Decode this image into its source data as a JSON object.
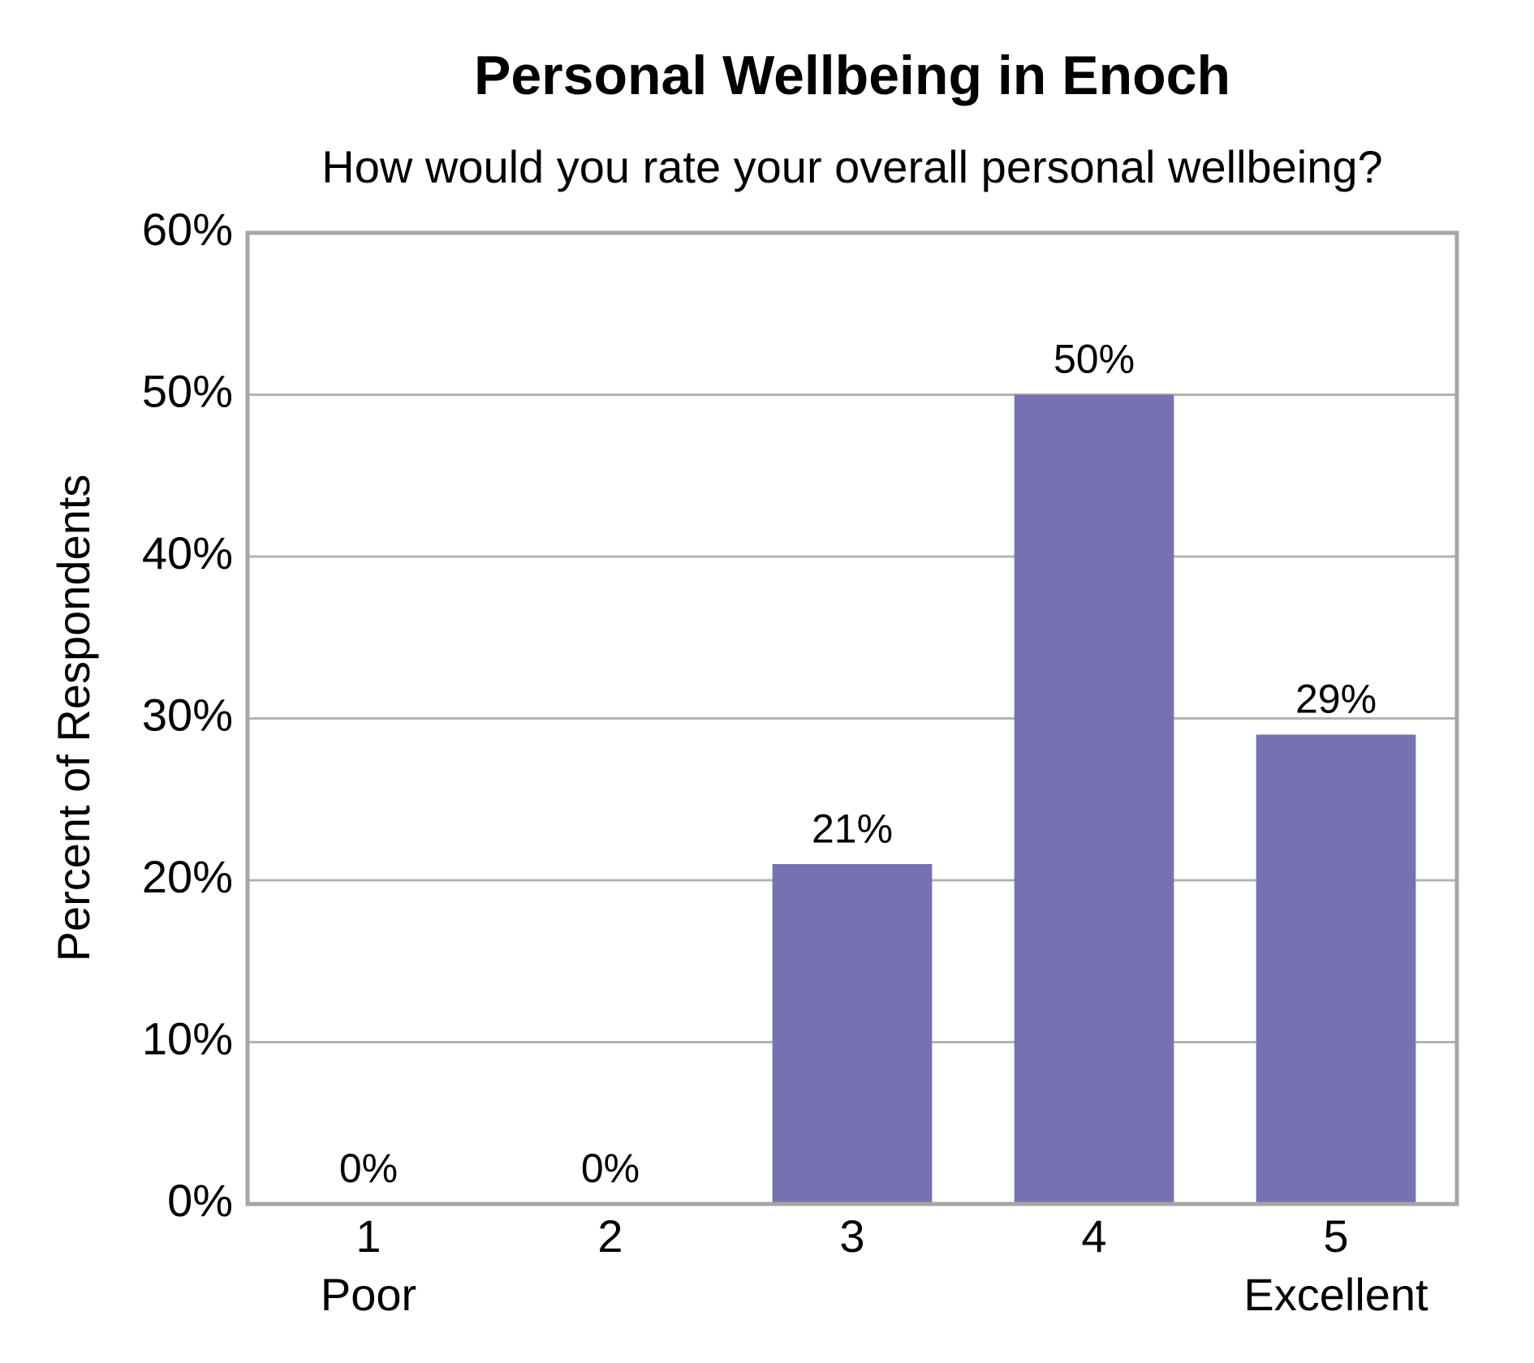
{
  "chart_data": {
    "type": "bar",
    "title": "Personal Wellbeing in Enoch",
    "subtitle": "How would you rate your overall personal wellbeing?",
    "ylabel": "Percent of Respondents",
    "categories": [
      "1",
      "2",
      "3",
      "4",
      "5"
    ],
    "category_sublabels": [
      "Poor",
      null,
      null,
      null,
      "Excellent"
    ],
    "values": [
      0,
      0,
      21,
      50,
      29
    ],
    "value_labels": [
      "0%",
      "0%",
      "21%",
      "50%",
      "29%"
    ],
    "color": "#7672b1",
    "ylim": [
      0,
      60
    ],
    "yticks": [
      {
        "value": 0,
        "label": "0%"
      },
      {
        "value": 10,
        "label": "10%"
      },
      {
        "value": 20,
        "label": "20%"
      },
      {
        "value": 30,
        "label": "30%"
      },
      {
        "value": 40,
        "label": "40%"
      },
      {
        "value": 50,
        "label": "50%"
      },
      {
        "value": 60,
        "label": "60%"
      }
    ],
    "grid": true
  }
}
